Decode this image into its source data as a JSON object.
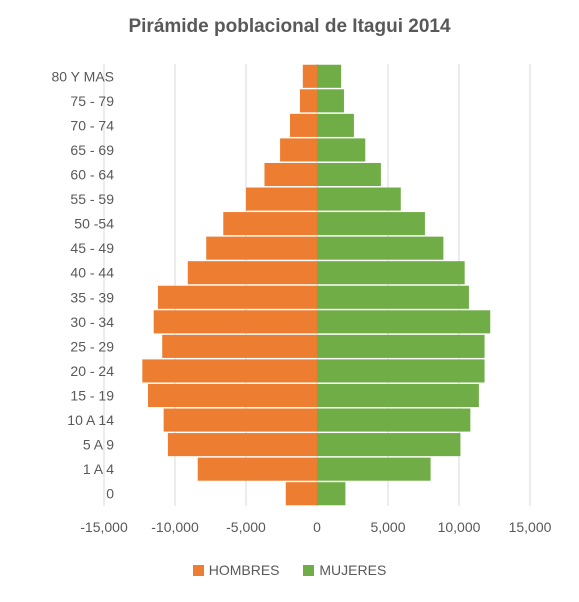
{
  "chart_data": {
    "type": "bar",
    "orientation": "horizontal",
    "title": "Pirámide poblacional de Itagui 2014",
    "categories": [
      "80 Y MAS",
      "75 - 79",
      "70 - 74",
      "65 - 69",
      "60 - 64",
      "55 - 59",
      "50 -54",
      "45 - 49",
      "40 - 44",
      "35 - 39",
      "30 - 34",
      "25 - 29",
      "20 - 24",
      "15 - 19",
      "10 A 14",
      "5 A 9",
      "1 A 4",
      "0"
    ],
    "series": [
      {
        "name": "HOMBRES",
        "color": "#ED7D31",
        "values": [
          -1000,
          -1200,
          -1900,
          -2600,
          -3700,
          -5000,
          -6600,
          -7800,
          -9100,
          -11200,
          -11500,
          -10900,
          -12300,
          -11900,
          -10800,
          -10500,
          -8400,
          -2200
        ]
      },
      {
        "name": "MUJERES",
        "color": "#70AD47",
        "values": [
          1700,
          1900,
          2600,
          3400,
          4500,
          5900,
          7600,
          8900,
          10400,
          10700,
          12200,
          11800,
          11800,
          11400,
          10800,
          10100,
          8000,
          2000
        ]
      }
    ],
    "xlim": [
      -15000,
      15000
    ],
    "xticks": [
      -15000,
      -10000,
      -5000,
      0,
      5000,
      10000,
      15000
    ],
    "xtick_labels": [
      "-15,000",
      "-10,000",
      "-5,000",
      "0",
      "5,000",
      "10,000",
      "15,000"
    ],
    "xlabel": "",
    "ylabel": "",
    "grid": "vertical",
    "legend_position": "bottom"
  }
}
